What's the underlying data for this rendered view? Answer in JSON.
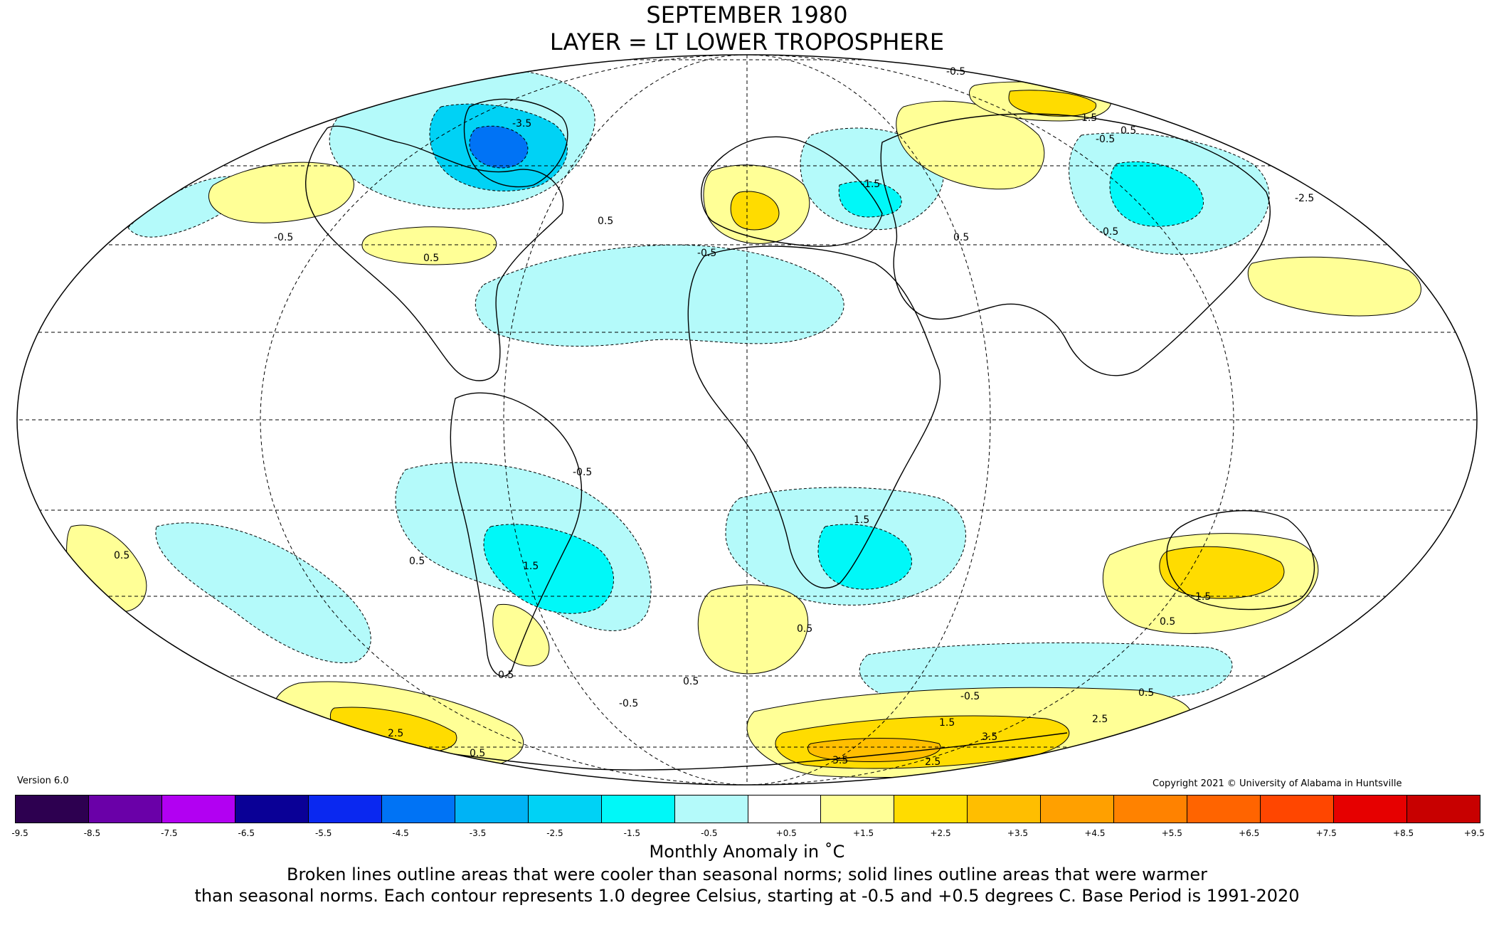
{
  "header": {
    "title": "SEPTEMBER 1980",
    "subtitle": "LAYER = LT LOWER TROPOSPHERE"
  },
  "footer": {
    "version": "Version 6.0",
    "copyright": "Copyright 2021 © University of Alabama in Huntsville",
    "units": "Monthly Anomaly in ˚C",
    "description_line1": "Broken lines outline areas that were cooler than seasonal norms; solid lines outline areas that were warmer",
    "description_line2": "than seasonal norms. Each contour represents 1.0 degree Celsius, starting at -0.5 and +0.5 degrees C. Base Period is 1991-2020"
  },
  "colorbar": {
    "ticks": [
      "-9.5",
      "-8.5",
      "-7.5",
      "-6.5",
      "-5.5",
      "-4.5",
      "-3.5",
      "-2.5",
      "-1.5",
      "-0.5",
      "+0.5",
      "+1.5",
      "+2.5",
      "+3.5",
      "+4.5",
      "+5.5",
      "+6.5",
      "+7.5",
      "+8.5",
      "+9.5"
    ],
    "colors": [
      "#2d0050",
      "#6a00a8",
      "#b200f2",
      "#0a0096",
      "#0a28f0",
      "#0073f5",
      "#00b3f5",
      "#00d2f5",
      "#00f8f8",
      "#b4fafa",
      "#ffffff",
      "#ffff96",
      "#ffdc00",
      "#ffbe00",
      "#ffa000",
      "#ff8200",
      "#ff6400",
      "#ff4600",
      "#e60000",
      "#c80000"
    ]
  },
  "map": {
    "projection": "mollweide",
    "colors": {
      "warm1": "#ffff96",
      "warm2": "#ffdc00",
      "warm3": "#ffbe00",
      "warm4": "#ffa000",
      "cool1": "#b4fafa",
      "cool2": "#00f8f8",
      "cool3": "#00d2f5",
      "cool4": "#00b3f5",
      "cool5": "#0073f5"
    },
    "contour_labels": [
      "-0.5",
      "-1.5",
      "-2.5",
      "-3.5",
      "0.5",
      "1.5",
      "2.5",
      "3.5"
    ]
  }
}
